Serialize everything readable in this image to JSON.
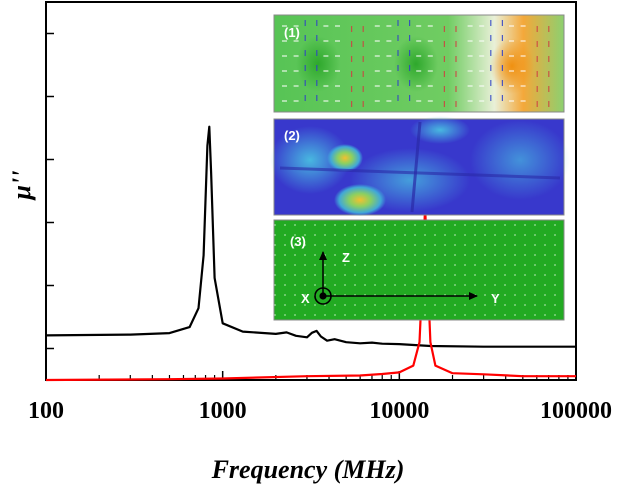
{
  "chart_data": {
    "type": "line",
    "xscale": "log",
    "xlim": [
      100,
      100000
    ],
    "xticks": [
      "100",
      "1000",
      "10000",
      "100000"
    ],
    "xlabel": "Frequency (MHz)",
    "ylabel": "μ''",
    "ylim": [
      0,
      1
    ],
    "ytick_count": 6,
    "series": [
      {
        "color": "#000000",
        "points": [
          [
            100,
            0.118
          ],
          [
            300,
            0.12
          ],
          [
            500,
            0.124
          ],
          [
            650,
            0.14
          ],
          [
            730,
            0.19
          ],
          [
            780,
            0.33
          ],
          [
            820,
            0.62
          ],
          [
            840,
            0.67
          ],
          [
            860,
            0.55
          ],
          [
            900,
            0.27
          ],
          [
            1000,
            0.15
          ],
          [
            1300,
            0.128
          ],
          [
            2000,
            0.122
          ],
          [
            2300,
            0.126
          ],
          [
            2600,
            0.117
          ],
          [
            3000,
            0.113
          ],
          [
            3200,
            0.125
          ],
          [
            3400,
            0.13
          ],
          [
            3600,
            0.115
          ],
          [
            3900,
            0.104
          ],
          [
            4300,
            0.108
          ],
          [
            5000,
            0.1
          ],
          [
            6000,
            0.097
          ],
          [
            7000,
            0.099
          ],
          [
            8000,
            0.096
          ],
          [
            10000,
            0.095
          ],
          [
            15000,
            0.09
          ],
          [
            30000,
            0.088
          ],
          [
            100000,
            0.088
          ]
        ]
      },
      {
        "color": "#ff0000",
        "points": [
          [
            100,
            0.0
          ],
          [
            500,
            0.002
          ],
          [
            1000,
            0.004
          ],
          [
            3000,
            0.01
          ],
          [
            6000,
            0.012
          ],
          [
            8000,
            0.016
          ],
          [
            10000,
            0.02
          ],
          [
            12000,
            0.038
          ],
          [
            13000,
            0.1
          ],
          [
            13600,
            0.3
          ],
          [
            14000,
            0.46
          ],
          [
            14400,
            0.3
          ],
          [
            15000,
            0.1
          ],
          [
            16000,
            0.038
          ],
          [
            20000,
            0.018
          ],
          [
            30000,
            0.015
          ],
          [
            50000,
            0.01
          ],
          [
            100000,
            0.01
          ]
        ]
      }
    ]
  },
  "insets": [
    {
      "label": "(1)",
      "colors": {
        "bg": "#57c455",
        "hot": "#f0a030",
        "arrow_blue": "#3040c8",
        "arrow_red": "#d04040"
      }
    },
    {
      "label": "(2)",
      "colors": {
        "bg": "#3a3ad0",
        "mid": "#40a0d8",
        "warm": "#e8b030"
      }
    },
    {
      "label": "(3)",
      "colors": {
        "bg": "#22aa22"
      },
      "axes": {
        "z": "Z",
        "x": "X",
        "y": "Y"
      }
    }
  ]
}
